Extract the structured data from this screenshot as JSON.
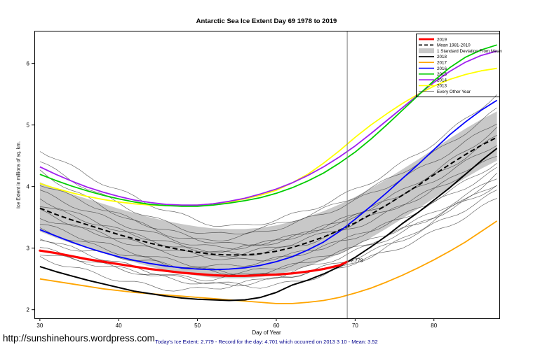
{
  "page": {
    "url_text": "http://sunshinehours.wordpress.com"
  },
  "chart_data": {
    "type": "line",
    "title": "Antarctic Sea Ice Extent Day 69 1978 to 2019",
    "xlabel": "Day of Year",
    "ylabel": "Ice Extent in millions of sq. km.",
    "caption": "Today's Ice Extent: 2.779  - Record for the day: 4.701 which occurred on 2013 3 10  - Mean: 3.52",
    "caption_color": "#00008B",
    "xlim": [
      29.3,
      88.3
    ],
    "ylim": [
      1.86,
      6.53
    ],
    "xticks": [
      30,
      40,
      50,
      60,
      70,
      80
    ],
    "yticks": [
      2,
      3,
      4,
      5,
      6
    ],
    "grid": false,
    "vline_x": 69,
    "vline_color": "#808080",
    "annotation": {
      "text": "2.779",
      "x": 69,
      "y": 2.8,
      "color": "#FF0000"
    },
    "band_color": "#C8C8C8",
    "band_upper_offset": 0.42,
    "band_lower_offset": 0.38,
    "x": [
      30,
      32,
      34,
      36,
      38,
      40,
      42,
      44,
      46,
      48,
      50,
      52,
      54,
      56,
      58,
      60,
      62,
      64,
      66,
      68,
      70,
      72,
      74,
      76,
      78,
      80,
      82,
      84,
      86,
      88
    ],
    "mean": [
      3.65,
      3.55,
      3.46,
      3.38,
      3.3,
      3.22,
      3.15,
      3.08,
      3.02,
      2.97,
      2.93,
      2.9,
      2.89,
      2.89,
      2.91,
      2.95,
      3.01,
      3.09,
      3.18,
      3.29,
      3.41,
      3.55,
      3.7,
      3.86,
      4.02,
      4.19,
      4.36,
      4.52,
      4.67,
      4.8
    ],
    "mean_style": {
      "name": "Mean 1981-2010",
      "color": "#000000",
      "width": 2,
      "dash": "7,4"
    },
    "series": [
      {
        "name": "2013",
        "color": "#FFFF00",
        "width": 1.8,
        "dash": "",
        "values": [
          4.05,
          3.97,
          3.9,
          3.84,
          3.79,
          3.75,
          3.72,
          3.7,
          3.69,
          3.69,
          3.7,
          3.72,
          3.75,
          3.8,
          3.86,
          3.94,
          4.06,
          4.2,
          4.38,
          4.58,
          4.8,
          5.0,
          5.18,
          5.35,
          5.5,
          5.63,
          5.74,
          5.82,
          5.88,
          5.92
        ]
      },
      {
        "name": "2014",
        "color": "#A020F0",
        "width": 1.8,
        "dash": "",
        "values": [
          4.32,
          4.2,
          4.09,
          3.99,
          3.91,
          3.84,
          3.78,
          3.74,
          3.71,
          3.7,
          3.7,
          3.72,
          3.76,
          3.81,
          3.88,
          3.96,
          4.06,
          4.18,
          4.32,
          4.48,
          4.66,
          4.86,
          5.07,
          5.28,
          5.49,
          5.69,
          5.87,
          6.02,
          6.13,
          6.2
        ]
      },
      {
        "name": "2015",
        "color": "#00CC00",
        "width": 1.8,
        "dash": "",
        "values": [
          4.2,
          4.1,
          4.01,
          3.93,
          3.86,
          3.8,
          3.75,
          3.71,
          3.69,
          3.68,
          3.68,
          3.7,
          3.73,
          3.77,
          3.82,
          3.89,
          3.98,
          4.09,
          4.22,
          4.38,
          4.56,
          4.77,
          5.0,
          5.24,
          5.48,
          5.72,
          5.93,
          6.1,
          6.22,
          6.3
        ]
      },
      {
        "name": "2016",
        "color": "#0000FF",
        "width": 1.8,
        "dash": "",
        "values": [
          3.3,
          3.2,
          3.1,
          3.01,
          2.93,
          2.86,
          2.8,
          2.75,
          2.71,
          2.68,
          2.66,
          2.65,
          2.66,
          2.68,
          2.72,
          2.78,
          2.86,
          2.97,
          3.1,
          3.27,
          3.47,
          3.68,
          3.9,
          4.13,
          4.36,
          4.6,
          4.84,
          5.05,
          5.24,
          5.4
        ]
      },
      {
        "name": "2017",
        "color": "#FFA500",
        "width": 1.8,
        "dash": "",
        "values": [
          2.5,
          2.46,
          2.42,
          2.38,
          2.34,
          2.31,
          2.28,
          2.26,
          2.24,
          2.22,
          2.2,
          2.18,
          2.16,
          2.14,
          2.12,
          2.1,
          2.1,
          2.12,
          2.15,
          2.2,
          2.27,
          2.35,
          2.45,
          2.56,
          2.68,
          2.81,
          2.95,
          3.1,
          3.27,
          3.44
        ]
      },
      {
        "name": "2018",
        "color": "#000000",
        "width": 2.0,
        "dash": "",
        "values": [
          2.7,
          2.62,
          2.55,
          2.48,
          2.42,
          2.36,
          2.3,
          2.26,
          2.22,
          2.19,
          2.17,
          2.16,
          2.15,
          2.16,
          2.2,
          2.28,
          2.4,
          2.48,
          2.58,
          2.7,
          2.85,
          3.02,
          3.2,
          3.4,
          3.58,
          3.78,
          3.98,
          4.2,
          4.42,
          4.62
        ]
      }
    ],
    "series_2019": {
      "name": "2019",
      "color": "#FF0000",
      "width": 3.2,
      "dash": "",
      "x": [
        30,
        32,
        34,
        36,
        38,
        40,
        42,
        44,
        46,
        48,
        50,
        52,
        54,
        56,
        58,
        60,
        62,
        64,
        66,
        68,
        69
      ],
      "values": [
        2.96,
        2.92,
        2.87,
        2.82,
        2.78,
        2.74,
        2.7,
        2.66,
        2.63,
        2.6,
        2.58,
        2.56,
        2.55,
        2.55,
        2.56,
        2.57,
        2.59,
        2.62,
        2.66,
        2.72,
        2.779
      ]
    },
    "background_years_label": "Every Other Year",
    "background_years": [
      [
        4.6,
        3.35,
        54,
        5.5,
        1
      ],
      [
        4.4,
        3.22,
        52,
        5.25,
        2
      ],
      [
        4.25,
        3.12,
        50,
        5.05,
        3
      ],
      [
        4.05,
        3.05,
        55,
        4.95,
        4
      ],
      [
        3.92,
        3.0,
        53,
        4.82,
        5
      ],
      [
        3.8,
        2.95,
        51,
        4.7,
        6
      ],
      [
        3.7,
        2.9,
        55,
        4.6,
        7
      ],
      [
        3.6,
        2.85,
        50,
        4.5,
        8
      ],
      [
        3.5,
        2.8,
        56,
        4.4,
        9
      ],
      [
        3.4,
        2.7,
        52,
        4.28,
        10
      ],
      [
        3.3,
        2.6,
        54,
        4.15,
        11
      ],
      [
        3.18,
        2.5,
        50,
        4.02,
        12
      ],
      [
        3.0,
        2.4,
        53,
        3.92,
        13
      ],
      [
        2.85,
        2.32,
        48,
        4.05,
        14
      ],
      [
        2.92,
        2.38,
        58,
        4.2,
        15
      ],
      [
        3.1,
        2.55,
        60,
        3.8,
        16
      ]
    ],
    "legend": [
      {
        "label": "2019",
        "color": "#FF0000",
        "width": 2.8,
        "dash": "",
        "kind": "line"
      },
      {
        "label": "Mean 1981-2010",
        "color": "#000000",
        "width": 1.6,
        "dash": "5,3",
        "kind": "line"
      },
      {
        "label": "1 Standard Deviation From Mean",
        "color": "#C8C8C8",
        "width": 0,
        "dash": "",
        "kind": "box"
      },
      {
        "label": "2018",
        "color": "#000000",
        "width": 1.6,
        "dash": "",
        "kind": "line"
      },
      {
        "label": "2017",
        "color": "#FFA500",
        "width": 1.6,
        "dash": "",
        "kind": "line"
      },
      {
        "label": "2016",
        "color": "#0000FF",
        "width": 1.6,
        "dash": "",
        "kind": "line"
      },
      {
        "label": "2015",
        "color": "#00CC00",
        "width": 1.6,
        "dash": "",
        "kind": "line"
      },
      {
        "label": "2014",
        "color": "#A020F0",
        "width": 1.6,
        "dash": "",
        "kind": "line"
      },
      {
        "label": "2013",
        "color": "#FFFF00",
        "width": 1.6,
        "dash": "",
        "kind": "line"
      },
      {
        "label": "Every Other Year",
        "color": "#444444",
        "width": 0.7,
        "dash": "",
        "kind": "line"
      }
    ]
  }
}
